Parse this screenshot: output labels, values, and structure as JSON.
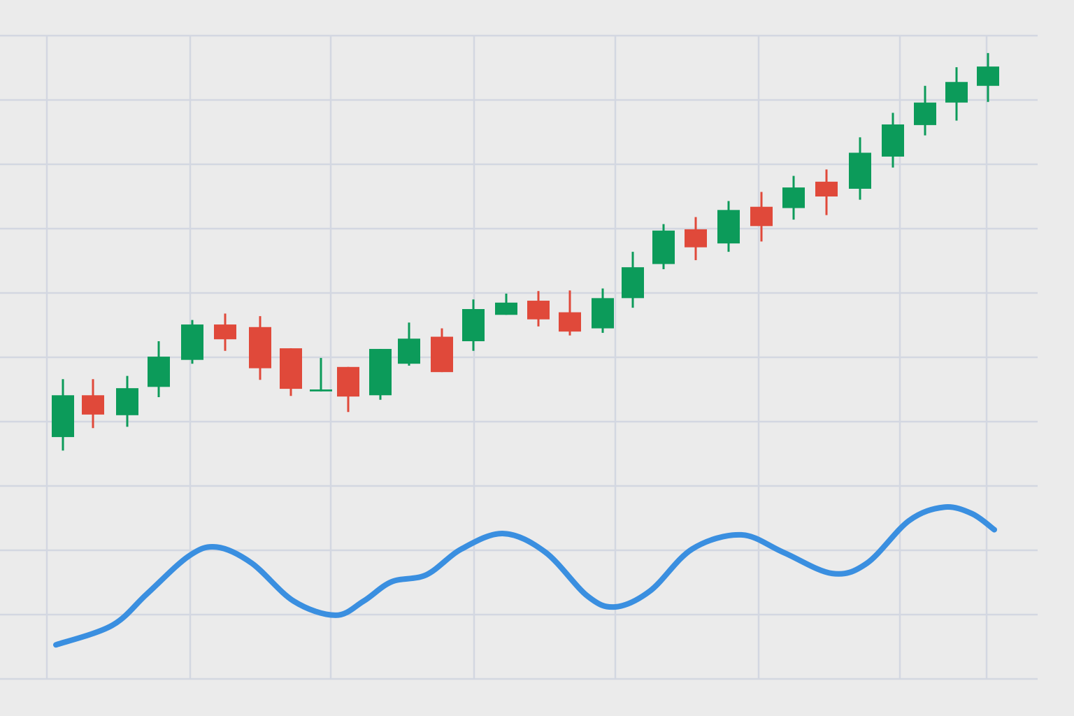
{
  "chart_data": {
    "type": "candlestick",
    "up_color": "#0c9b5a",
    "down_color": "#e0493a",
    "grid": true,
    "xlim": [
      0,
      14.84
    ],
    "ylim": [
      0,
      10
    ],
    "xticks": [
      0.67,
      2.72,
      4.73,
      6.78,
      8.8,
      10.85,
      12.87,
      14.11
    ],
    "yticks": [
      0,
      1,
      2,
      3,
      4,
      5,
      6,
      7,
      8,
      9,
      10
    ],
    "x": [
      0.9,
      1.33,
      1.82,
      2.27,
      2.75,
      3.22,
      3.72,
      4.16,
      4.59,
      4.98,
      5.44,
      5.85,
      6.32,
      6.77,
      7.24,
      7.7,
      8.15,
      8.62,
      9.05,
      9.49,
      9.95,
      10.42,
      10.89,
      11.35,
      11.82,
      12.3,
      12.77,
      13.23,
      13.68,
      14.13
    ],
    "open": [
      3.76,
      4.41,
      4.1,
      4.54,
      4.96,
      5.51,
      5.47,
      5.14,
      4.47,
      4.85,
      4.41,
      4.9,
      5.32,
      5.25,
      5.66,
      5.88,
      5.7,
      5.45,
      5.92,
      6.45,
      6.99,
      6.77,
      7.34,
      7.32,
      7.73,
      7.62,
      8.12,
      8.61,
      8.96,
      9.22
    ],
    "high": [
      4.66,
      4.66,
      4.71,
      5.25,
      5.58,
      5.68,
      5.64,
      5.14,
      4.99,
      4.85,
      5.13,
      5.54,
      5.45,
      5.9,
      5.99,
      6.03,
      6.04,
      6.07,
      6.64,
      7.07,
      7.18,
      7.43,
      7.57,
      7.82,
      7.92,
      8.42,
      8.8,
      9.22,
      9.51,
      9.73
    ],
    "low": [
      3.55,
      3.9,
      3.92,
      4.38,
      4.9,
      5.1,
      4.65,
      4.4,
      4.47,
      4.15,
      4.34,
      4.87,
      4.77,
      5.1,
      5.66,
      5.48,
      5.34,
      5.38,
      5.77,
      6.37,
      6.51,
      6.64,
      6.8,
      7.14,
      7.21,
      7.45,
      7.95,
      8.45,
      8.68,
      8.97
    ],
    "close": [
      4.41,
      4.11,
      4.52,
      5.01,
      5.51,
      5.28,
      4.83,
      4.51,
      4.5,
      4.39,
      5.13,
      5.29,
      4.77,
      5.75,
      5.85,
      5.59,
      5.4,
      5.92,
      6.4,
      6.97,
      6.71,
      7.29,
      7.04,
      7.64,
      7.5,
      8.18,
      8.62,
      8.96,
      9.28,
      9.52
    ],
    "line": {
      "color": "#3a8fe0",
      "x": [
        0.8,
        1.6,
        2.1,
        2.7,
        3.1,
        3.6,
        4.2,
        4.8,
        5.2,
        5.6,
        6.1,
        6.6,
        7.2,
        7.8,
        8.4,
        8.8,
        9.3,
        9.9,
        10.6,
        11.2,
        11.9,
        12.4,
        13.0,
        13.5,
        13.9,
        14.22
      ],
      "values": [
        0.53,
        0.83,
        1.32,
        1.91,
        2.05,
        1.8,
        1.21,
        0.99,
        1.21,
        1.51,
        1.62,
        2.02,
        2.26,
        1.97,
        1.29,
        1.12,
        1.37,
        2.02,
        2.24,
        1.97,
        1.64,
        1.8,
        2.46,
        2.67,
        2.57,
        2.32
      ]
    }
  }
}
